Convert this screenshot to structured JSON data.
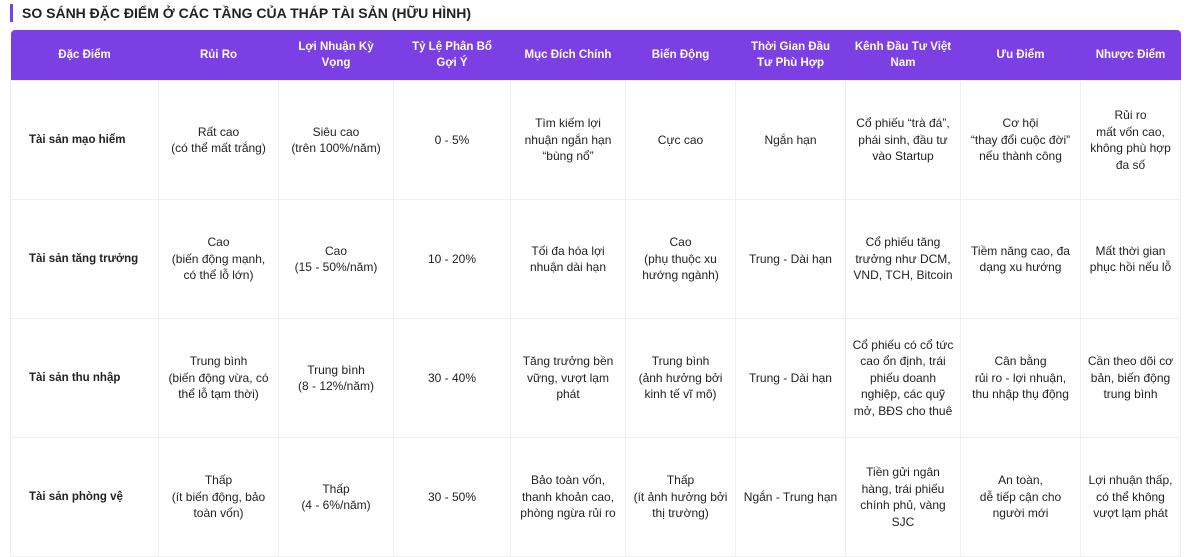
{
  "title": "SO SÁNH ĐẶC ĐIỂM Ở CÁC TẦNG CỦA THÁP TÀI SẢN (HỮU HÌNH)",
  "table": {
    "header": [
      "Đặc Điểm",
      "Rủi Ro",
      "Lợi Nhuận Kỳ Vọng",
      "Tỷ Lệ Phân Bổ Gợi Ý",
      "Mục Đích Chính",
      "Biến Động",
      "Thời Gian Đầu Tư Phù Hợp",
      "Kênh Đầu Tư Việt Nam",
      "Ưu Điểm",
      "Nhược Điểm"
    ],
    "rows": [
      [
        "Tài sản mạo hiểm",
        "Rất cao\n(có thể mất trắng)",
        "Siêu cao\n(trên 100%/năm)",
        "0 - 5%",
        "Tìm kiếm lợi nhuận ngắn hạn “bùng nổ”",
        "Cực cao",
        "Ngắn hạn",
        "Cổ phiếu “trà đá”, phái sinh, đầu tư vào Startup",
        "Cơ hội\n“thay đổi cuộc đời” nếu thành công",
        "Rủi ro\nmất vốn cao, không phù hợp đa số"
      ],
      [
        "Tài sản tăng trưởng",
        "Cao\n(biến động mạnh, có thể lỗ lớn)",
        "Cao\n(15 - 50%/năm)",
        "10 - 20%",
        "Tối đa hóa lợi nhuận dài hạn",
        "Cao\n(phụ thuộc xu hướng ngành)",
        "Trung - Dài hạn",
        "Cổ phiếu tăng trưởng như DCM, VND, TCH, Bitcoin",
        "Tiềm năng cao, đa dạng xu hướng",
        "Mất thời gian phục hồi nếu lỗ"
      ],
      [
        "Tài sản thu nhập",
        "Trung bình\n(biến động vừa, có thể lỗ tạm thời)",
        "Trung bình\n(8 - 12%/năm)",
        "30 - 40%",
        "Tăng trưởng bền vững, vượt lạm phát",
        "Trung bình\n(ảnh hưởng bởi kinh tế vĩ mô)",
        "Trung - Dài hạn",
        "Cổ phiếu có cổ tức cao ổn định, trái phiếu doanh nghiệp, các quỹ mở, BĐS cho thuê",
        "Cân bằng\nrủi ro - lợi nhuận, thu nhập thụ động",
        "Cần theo dõi cơ bản, biến động trung bình"
      ],
      [
        "Tài sản phòng vệ",
        "Thấp\n(ít biến động, bảo toàn vốn)",
        "Thấp\n(4 - 6%/năm)",
        "30 - 50%",
        "Bảo toàn vốn, thanh khoản cao, phòng ngừa rủi ro",
        "Thấp\n(ít ảnh hưởng bởi thị trường)",
        "Ngắn - Trung hạn",
        "Tiền gửi ngân hàng, trái phiếu chính phủ, vàng SJC",
        "An toàn,\ndễ tiếp cận cho người mới",
        "Lợi nhuận thấp, có thể không vượt lạm phát"
      ]
    ]
  }
}
